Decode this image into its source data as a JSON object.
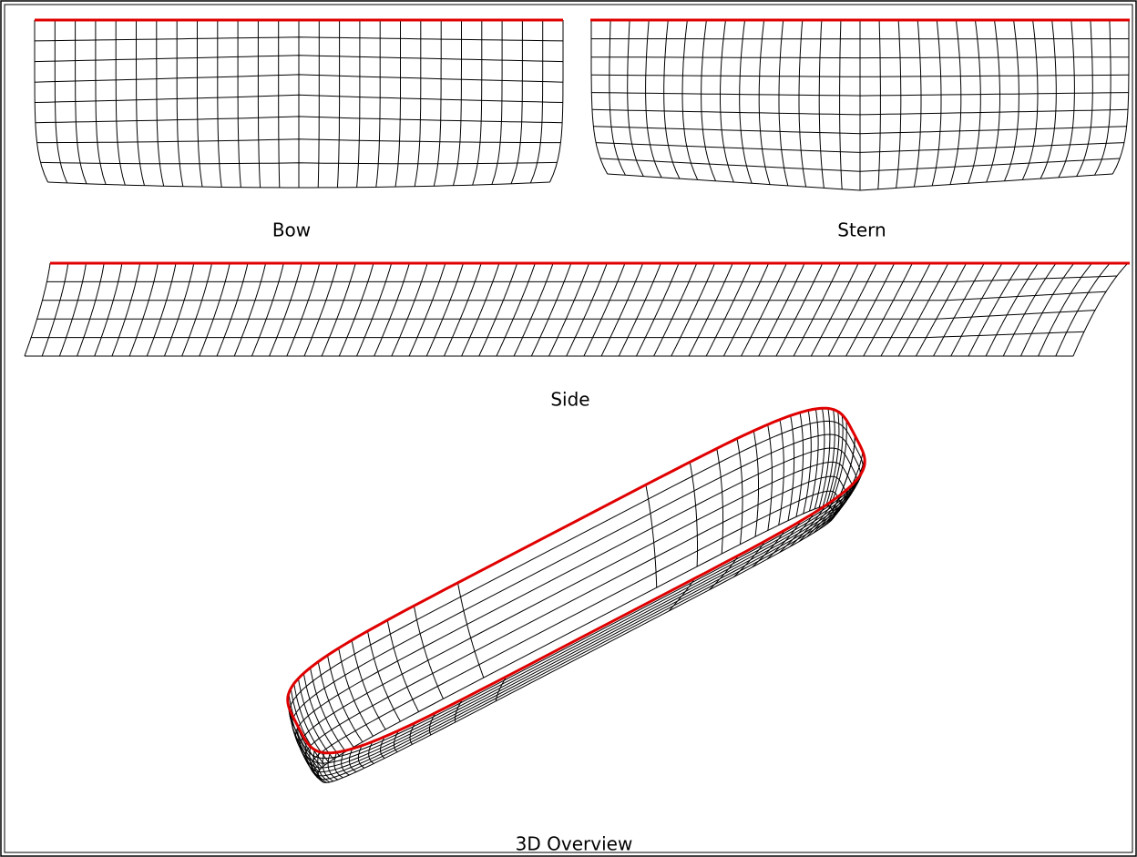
{
  "views": [
    {
      "label": "Bow"
    },
    {
      "label": "Stern"
    },
    {
      "label": "Side"
    },
    {
      "label": "3D Overview"
    }
  ]
}
